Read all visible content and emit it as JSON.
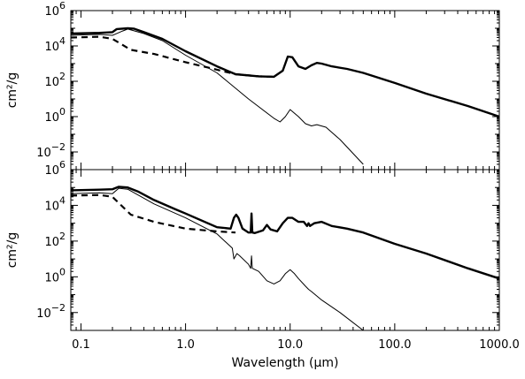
{
  "chart_data": [
    {
      "type": "line",
      "panel": "top",
      "ylabel": "cm²/g",
      "xlabel": "",
      "x_scale": "log",
      "y_scale": "log",
      "xlim": [
        0.08,
        1000
      ],
      "ylim": [
        0.001,
        1000000
      ],
      "x_ticks": [
        0.1,
        1,
        10,
        100,
        1000
      ],
      "y_ticks": [
        {
          "value": 0.01,
          "label": "10",
          "exp": "−2"
        },
        {
          "value": 1,
          "label": "10",
          "exp": "0"
        },
        {
          "value": 100,
          "label": "10",
          "exp": "2"
        },
        {
          "value": 10000,
          "label": "10",
          "exp": "4"
        },
        {
          "value": 1000000,
          "label": "10",
          "exp": "6"
        }
      ],
      "series": [
        {
          "style": "thick-solid",
          "x": [
            0.08,
            0.15,
            0.2,
            0.22,
            0.28,
            0.32,
            0.4,
            0.6,
            1.0,
            2.0,
            3.0,
            5.0,
            7.0,
            8.5,
            9.5,
            10.5,
            12,
            14,
            16,
            18,
            20,
            25,
            35,
            50,
            100,
            200,
            500,
            1000
          ],
          "y": [
            50000,
            55000,
            60000,
            90000,
            100000,
            95000,
            60000,
            25000,
            5000,
            700,
            250,
            190,
            180,
            400,
            2500,
            2300,
            700,
            500,
            800,
            1100,
            1000,
            700,
            500,
            300,
            80,
            20,
            4,
            1
          ]
        },
        {
          "style": "thin-solid",
          "x": [
            0.08,
            0.15,
            0.2,
            0.25,
            0.28,
            0.4,
            0.6,
            1.0,
            2.0,
            4.0,
            7.0,
            8.0,
            9.0,
            10,
            12,
            14,
            16,
            18,
            22,
            30,
            50
          ],
          "y": [
            40000,
            45000,
            40000,
            70000,
            90000,
            50000,
            20000,
            3000,
            300,
            10,
            0.8,
            0.5,
            1.0,
            2.5,
            1.0,
            0.4,
            0.3,
            0.35,
            0.25,
            0.05,
            0.002
          ]
        },
        {
          "style": "thick-dashed",
          "x": [
            0.08,
            0.15,
            0.2,
            0.3,
            0.5,
            1.0,
            2.0,
            3.0,
            5.0,
            7.0
          ],
          "y": [
            30000,
            33000,
            25000,
            6000,
            3500,
            1200,
            450,
            250,
            190,
            180
          ]
        }
      ]
    },
    {
      "type": "line",
      "panel": "bottom",
      "ylabel": "cm²/g",
      "xlabel": "Wavelength (μm)",
      "x_scale": "log",
      "y_scale": "log",
      "xlim": [
        0.08,
        1000
      ],
      "ylim": [
        0.001,
        1000000
      ],
      "x_ticks": [
        0.1,
        1,
        10,
        100,
        1000
      ],
      "x_tick_labels": [
        "0.1",
        "1.0",
        "10.0",
        "100.0",
        "1000.0"
      ],
      "y_ticks": [
        {
          "value": 0.01,
          "label": "10",
          "exp": "−2"
        },
        {
          "value": 1,
          "label": "10",
          "exp": "0"
        },
        {
          "value": 100,
          "label": "10",
          "exp": "2"
        },
        {
          "value": 10000,
          "label": "10",
          "exp": "4"
        },
        {
          "value": 1000000,
          "label": "10",
          "exp": "6"
        }
      ],
      "series": [
        {
          "style": "thick-solid",
          "x": [
            0.08,
            0.15,
            0.2,
            0.23,
            0.28,
            0.35,
            0.5,
            0.8,
            1.0,
            2.0,
            2.7,
            2.9,
            3.05,
            3.2,
            3.5,
            4.0,
            4.2,
            4.27,
            4.35,
            4.6,
            5.5,
            6.0,
            6.5,
            7.5,
            8.5,
            9.5,
            10.5,
            12,
            13.5,
            14.5,
            15,
            15.5,
            17,
            20,
            25,
            35,
            50,
            100,
            200,
            500,
            1000
          ],
          "y": [
            70000,
            75000,
            80000,
            110000,
            100000,
            60000,
            20000,
            6000,
            3500,
            600,
            500,
            2000,
            3000,
            2000,
            500,
            300,
            300,
            3500,
            300,
            280,
            400,
            800,
            450,
            350,
            1000,
            2000,
            2000,
            1200,
            1200,
            700,
            1000,
            700,
            1000,
            1200,
            700,
            500,
            300,
            70,
            20,
            3,
            0.8
          ]
        },
        {
          "style": "thin-solid",
          "x": [
            0.08,
            0.15,
            0.2,
            0.23,
            0.28,
            0.5,
            1.0,
            2.0,
            2.8,
            2.9,
            3.1,
            3.3,
            4.0,
            4.2,
            4.27,
            4.35,
            5.0,
            6.0,
            7.0,
            8.0,
            9.0,
            10,
            11,
            12,
            14,
            15,
            16,
            20,
            30,
            50
          ],
          "y": [
            45000,
            50000,
            45000,
            90000,
            80000,
            12000,
            2000,
            250,
            40,
            10,
            20,
            15,
            5,
            3,
            15,
            3,
            2,
            0.6,
            0.4,
            0.6,
            1.5,
            2.5,
            1.5,
            0.8,
            0.3,
            0.2,
            0.15,
            0.05,
            0.01,
            0.001
          ]
        },
        {
          "style": "thick-dashed",
          "x": [
            0.08,
            0.15,
            0.2,
            0.3,
            0.5,
            1.0,
            2.0,
            3.0
          ],
          "y": [
            35000,
            38000,
            30000,
            3000,
            1200,
            500,
            350,
            300
          ]
        }
      ]
    }
  ]
}
